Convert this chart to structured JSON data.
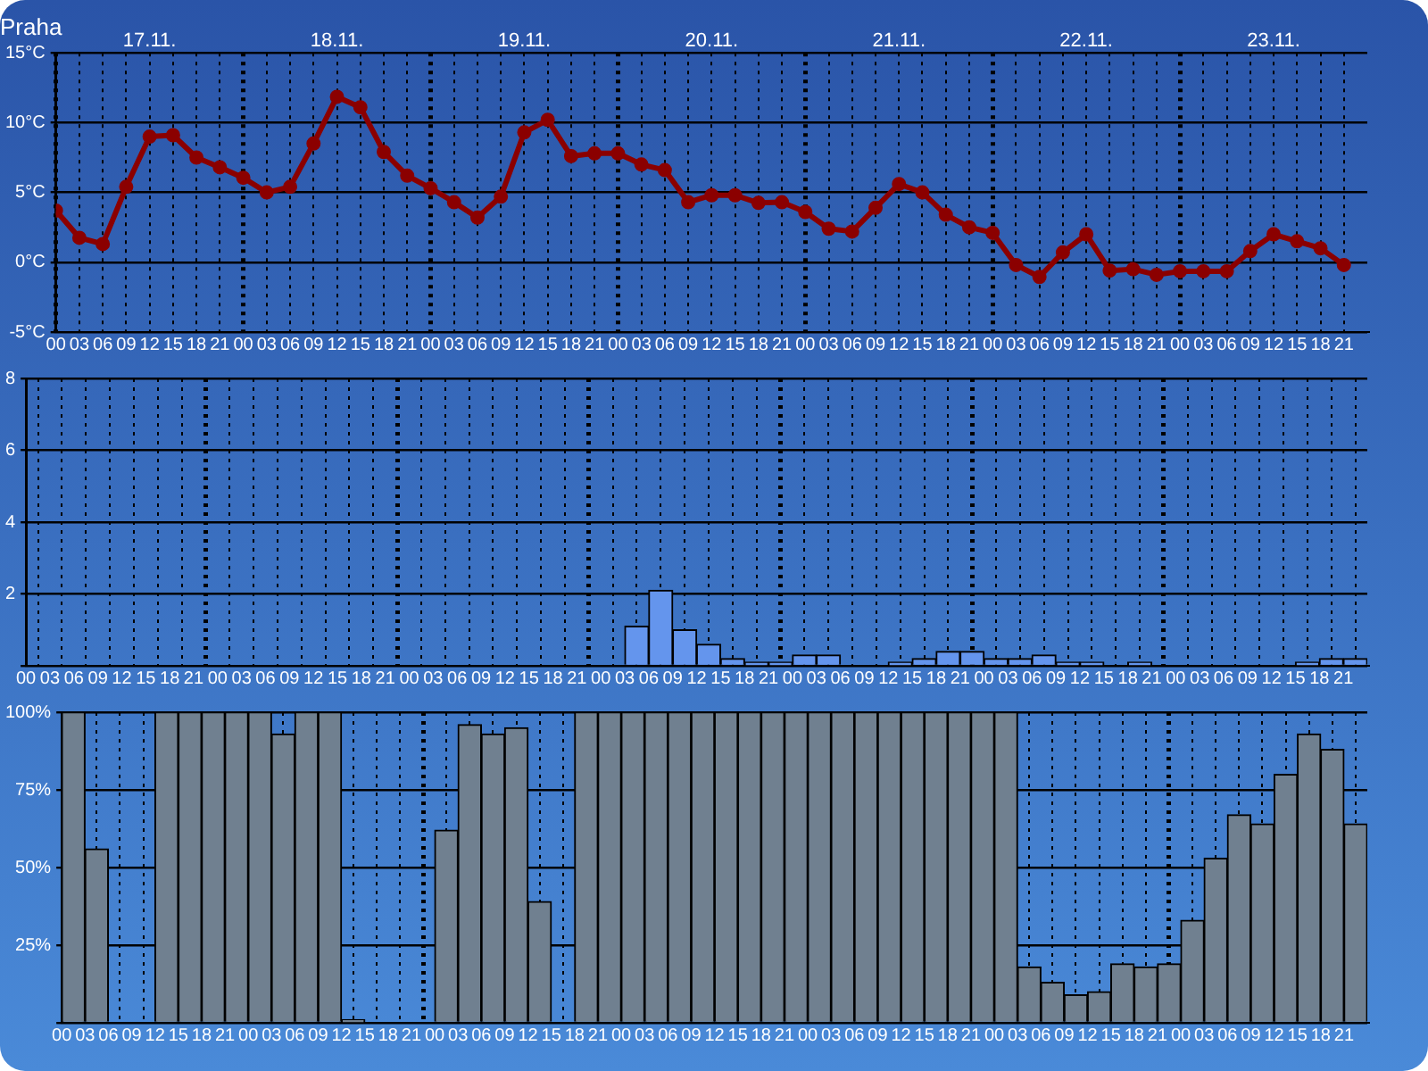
{
  "chart_data": [
    {
      "type": "line",
      "title": "Praha",
      "annotations": [
        "17.11.",
        "18.11.",
        "19.11.",
        "20.11.",
        "21.11.",
        "22.11.",
        "23.11."
      ],
      "categories": [
        "00",
        "03",
        "06",
        "09",
        "12",
        "15",
        "18",
        "21",
        "00",
        "03",
        "06",
        "09",
        "12",
        "15",
        "18",
        "21",
        "00",
        "03",
        "06",
        "09",
        "12",
        "15",
        "18",
        "21",
        "00",
        "03",
        "06",
        "09",
        "12",
        "15",
        "18",
        "21",
        "00",
        "03",
        "06",
        "09",
        "12",
        "15",
        "18",
        "21",
        "00",
        "03",
        "06",
        "09",
        "12",
        "15",
        "18",
        "21",
        "00",
        "03",
        "06",
        "09",
        "12",
        "15",
        "18",
        "21"
      ],
      "values": [
        3.7,
        1.75,
        1.3,
        5.4,
        9.0,
        9.1,
        7.5,
        6.8,
        6.05,
        5.0,
        5.4,
        8.5,
        11.85,
        11.1,
        7.9,
        6.2,
        5.3,
        4.3,
        3.2,
        4.7,
        9.3,
        10.2,
        7.6,
        7.8,
        7.8,
        7.0,
        6.6,
        4.3,
        4.8,
        4.8,
        4.25,
        4.3,
        3.6,
        2.4,
        2.2,
        3.9,
        5.6,
        5.0,
        3.4,
        2.5,
        2.1,
        -0.2,
        -1.05,
        0.7,
        2.0,
        -0.6,
        -0.5,
        -0.9,
        -0.65,
        -0.65,
        -0.65,
        0.8,
        2.0,
        1.5,
        1.0,
        -0.2
      ],
      "color": "#8b0000",
      "ylim": [
        -5,
        15
      ],
      "yticks": [
        {
          "value": -5,
          "label": "-5°C"
        },
        {
          "value": 0,
          "label": "0°C"
        },
        {
          "value": 5,
          "label": "5°C"
        },
        {
          "value": 10,
          "label": "10°C"
        },
        {
          "value": 15,
          "label": "15°C"
        }
      ],
      "grid": true,
      "marker": "circle",
      "line_style": "solid"
    },
    {
      "type": "bar",
      "categories": [
        "00",
        "03",
        "06",
        "09",
        "12",
        "15",
        "18",
        "21",
        "00",
        "03",
        "06",
        "09",
        "12",
        "15",
        "18",
        "21",
        "00",
        "03",
        "06",
        "09",
        "12",
        "15",
        "18",
        "21",
        "00",
        "03",
        "06",
        "09",
        "12",
        "15",
        "18",
        "21",
        "00",
        "03",
        "06",
        "09",
        "12",
        "15",
        "18",
        "21",
        "00",
        "03",
        "06",
        "09",
        "12",
        "15",
        "18",
        "21",
        "00",
        "03",
        "06",
        "09",
        "12",
        "15",
        "18",
        "21"
      ],
      "values": [
        0,
        0,
        0,
        0,
        0,
        0,
        0,
        0,
        0,
        0,
        0,
        0,
        0,
        0,
        0,
        0,
        0,
        0,
        0,
        0,
        0,
        0,
        0,
        0,
        0,
        1.1,
        2.1,
        1.0,
        0.6,
        0.2,
        0.1,
        0.1,
        0.3,
        0.3,
        0,
        0,
        0.1,
        0.2,
        0.4,
        0.4,
        0.2,
        0.2,
        0.3,
        0.1,
        0.1,
        0,
        0.1,
        0,
        0,
        0,
        0,
        0,
        0,
        0.1,
        0.2,
        0.2
      ],
      "color": "#6495ed",
      "ylim": [
        0,
        8
      ],
      "yticks": [
        {
          "value": 0,
          "label": null
        },
        2,
        4,
        6,
        8
      ],
      "grid": true
    },
    {
      "type": "bar",
      "categories": [
        "00",
        "03",
        "06",
        "09",
        "12",
        "15",
        "18",
        "21",
        "00",
        "03",
        "06",
        "09",
        "12",
        "15",
        "18",
        "21",
        "00",
        "03",
        "06",
        "09",
        "12",
        "15",
        "18",
        "21",
        "00",
        "03",
        "06",
        "09",
        "12",
        "15",
        "18",
        "21",
        "00",
        "03",
        "06",
        "09",
        "12",
        "15",
        "18",
        "21",
        "00",
        "03",
        "06",
        "09",
        "12",
        "15",
        "18",
        "21",
        "00",
        "03",
        "06",
        "09",
        "12",
        "15",
        "18",
        "21"
      ],
      "values": [
        100,
        56,
        0,
        0,
        100,
        100,
        100,
        100,
        100,
        93,
        100,
        100,
        1,
        0,
        0,
        0,
        62,
        96,
        93,
        95,
        39,
        0,
        100,
        100,
        100,
        100,
        100,
        100,
        100,
        100,
        100,
        100,
        100,
        100,
        100,
        100,
        100,
        100,
        100,
        100,
        100,
        18,
        13,
        9,
        10,
        19,
        18,
        19,
        33,
        53,
        67,
        64,
        80,
        93,
        88,
        64
      ],
      "color": "#708090",
      "ylim": [
        0,
        100
      ],
      "yticks": [
        {
          "value": 0,
          "label": null
        },
        {
          "value": 25,
          "label": "25%"
        },
        {
          "value": 50,
          "label": "50%"
        },
        {
          "value": 75,
          "label": "75%"
        },
        {
          "value": 100,
          "label": "100%"
        }
      ],
      "grid": true
    }
  ]
}
